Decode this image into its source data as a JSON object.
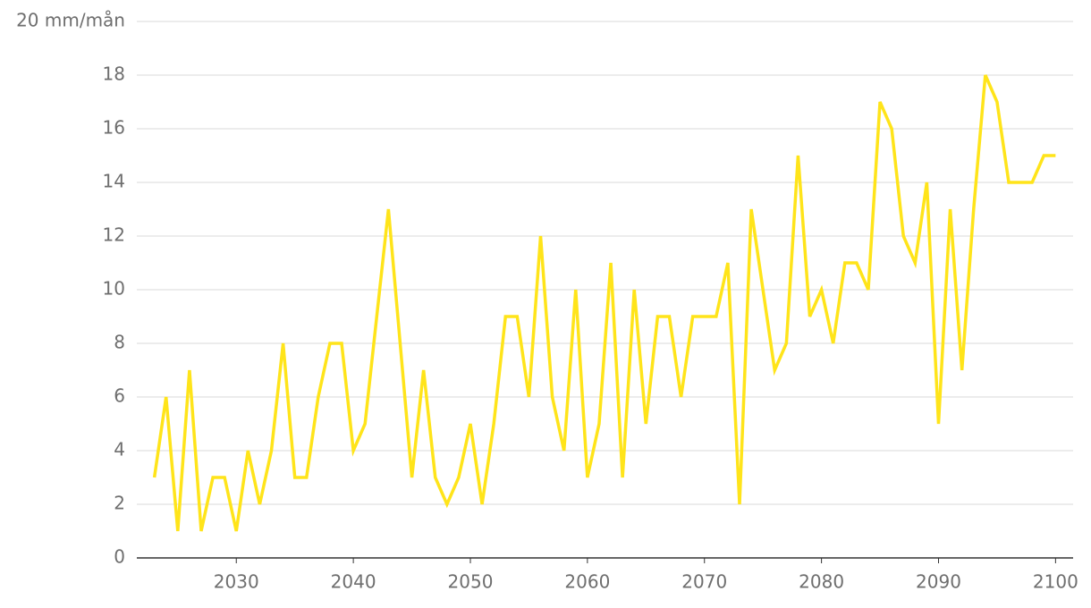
{
  "chart_data": {
    "type": "line",
    "x": [
      2023,
      2024,
      2025,
      2026,
      2027,
      2028,
      2029,
      2030,
      2031,
      2032,
      2033,
      2034,
      2035,
      2036,
      2037,
      2038,
      2039,
      2040,
      2041,
      2042,
      2043,
      2044,
      2045,
      2046,
      2047,
      2048,
      2049,
      2050,
      2051,
      2052,
      2053,
      2054,
      2055,
      2056,
      2057,
      2058,
      2059,
      2060,
      2061,
      2062,
      2063,
      2064,
      2065,
      2066,
      2067,
      2068,
      2069,
      2070,
      2071,
      2072,
      2073,
      2074,
      2075,
      2076,
      2077,
      2078,
      2079,
      2080,
      2081,
      2082,
      2083,
      2084,
      2085,
      2086,
      2087,
      2088,
      2089,
      2090,
      2091,
      2092,
      2093,
      2094,
      2095,
      2096,
      2097,
      2098,
      2099,
      2100
    ],
    "series": [
      {
        "color": "#ffe41a",
        "values": [
          3,
          6,
          1,
          7,
          1,
          3,
          3,
          1,
          4,
          2,
          4,
          8,
          3,
          3,
          6,
          8,
          8,
          4,
          5,
          9,
          13,
          8,
          3,
          7,
          3,
          2,
          3,
          5,
          2,
          5,
          9,
          9,
          6,
          12,
          6,
          4,
          10,
          3,
          5,
          11,
          3,
          10,
          5,
          9,
          9,
          6,
          9,
          9,
          9,
          11,
          2,
          13,
          10,
          7,
          8,
          15,
          9,
          10,
          8,
          11,
          11,
          10,
          17,
          16,
          12,
          11,
          14,
          5,
          13,
          7,
          13,
          18,
          17,
          14,
          14,
          14,
          15,
          15
        ]
      }
    ],
    "xlim": [
      2021.5,
      2101.5
    ],
    "xticks": [
      2030,
      2040,
      2050,
      2060,
      2070,
      2080,
      2090,
      2100
    ],
    "ylim": [
      0,
      20
    ],
    "yticks": [
      0,
      2,
      4,
      6,
      8,
      10,
      12,
      14,
      16,
      18,
      {
        "value": 20,
        "label": "20 mm/mån"
      }
    ],
    "grid": true
  }
}
